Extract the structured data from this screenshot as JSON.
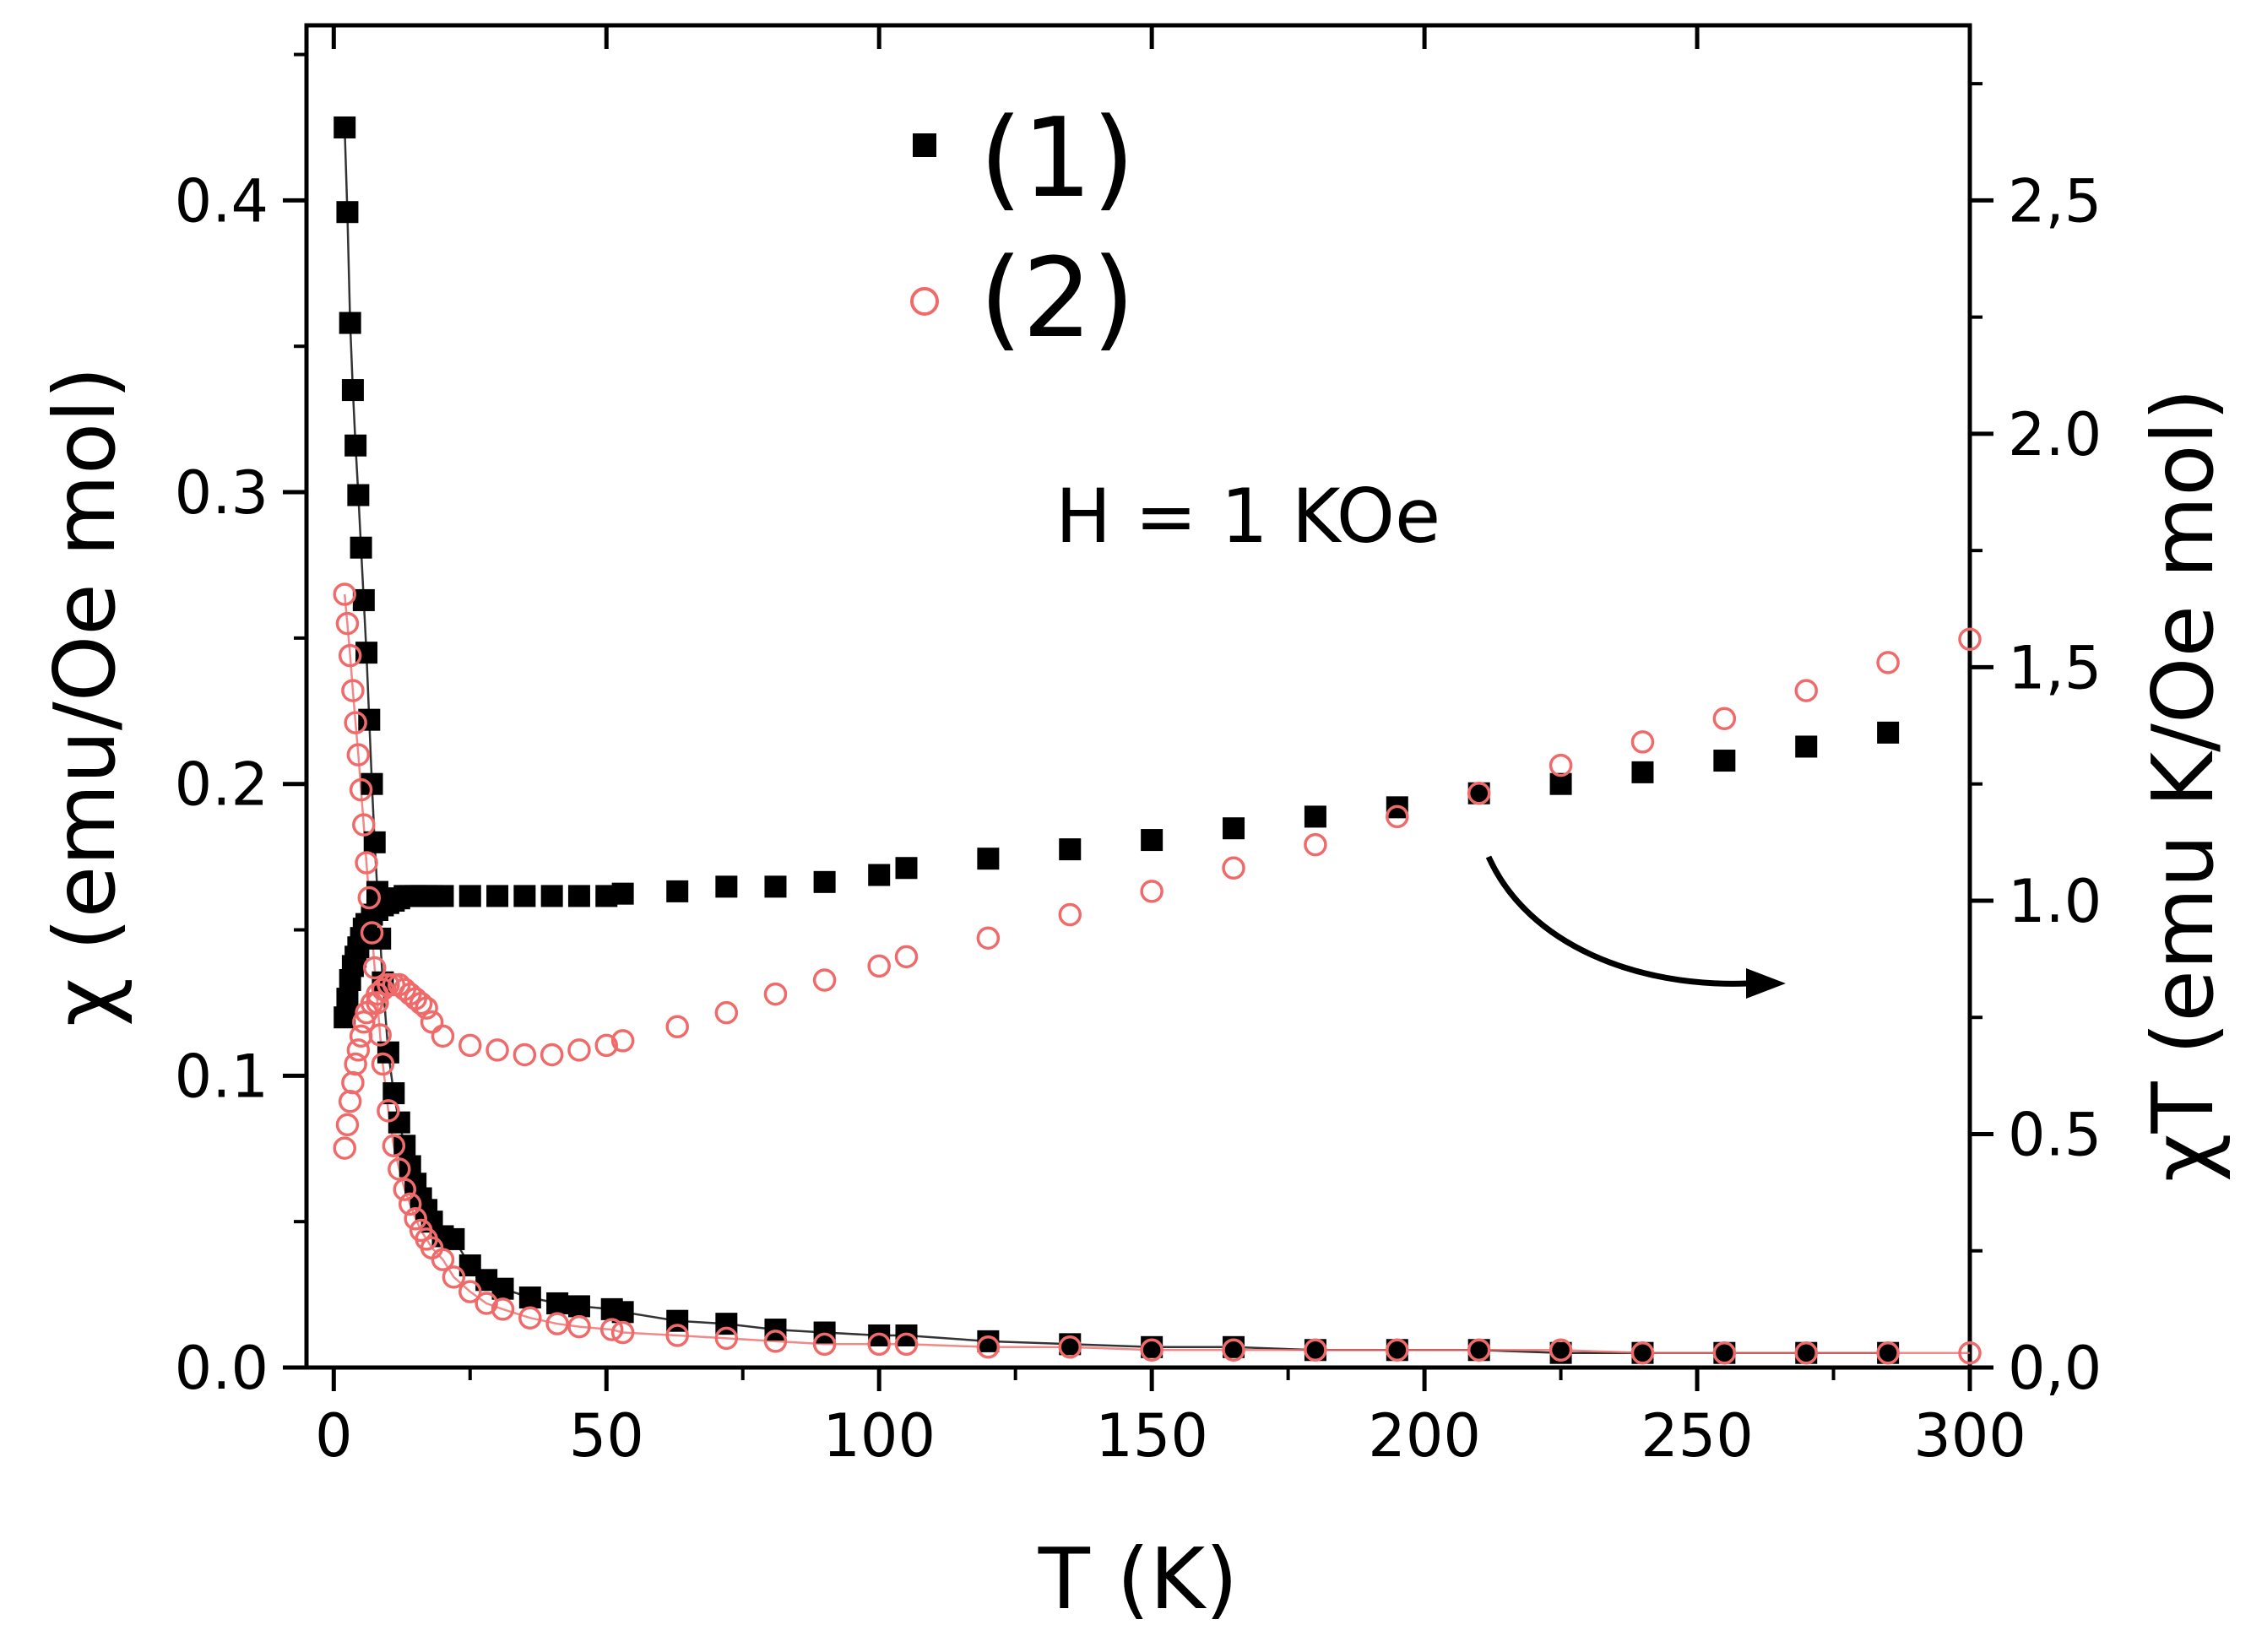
{
  "chart_data": {
    "type": "scatter",
    "title": "",
    "xlabel": "T (K)",
    "ylabel_left": "χ (emu/Oe mol)",
    "ylabel_right": "χT (emu K/Oe mol)",
    "xlim": [
      -5,
      300
    ],
    "ylim_left": [
      0,
      0.46
    ],
    "ylim_right": [
      0,
      2.875
    ],
    "x_ticks": [
      0,
      50,
      100,
      150,
      200,
      250,
      300
    ],
    "x_tick_labels": [
      "0",
      "50",
      "100",
      "150",
      "200",
      "250",
      "300"
    ],
    "y_left_ticks": [
      0.0,
      0.1,
      0.2,
      0.3,
      0.4
    ],
    "y_left_tick_labels": [
      "0.0",
      "0.1",
      "0.2",
      "0.3",
      "0.4"
    ],
    "y_right_ticks": [
      0.0,
      0.5,
      1.0,
      1.5,
      2.0,
      2.5
    ],
    "y_right_tick_labels": [
      "0,0",
      "0.5",
      "1.0",
      "1,5",
      "2.0",
      "2,5"
    ],
    "annotation": "H = 1 KOe",
    "legend": [
      {
        "label": "(1)",
        "marker": "filled-square",
        "color": "#000000"
      },
      {
        "label": "(2)",
        "marker": "open-circle",
        "color": "#f06a6a"
      }
    ],
    "series": [
      {
        "name": "(1) χ",
        "axis": "left",
        "color": "#000000",
        "marker": "filled-square",
        "x": [
          2,
          2.5,
          3,
          3.5,
          4,
          4.5,
          5,
          5.5,
          6,
          6.5,
          7,
          7.5,
          8,
          8.5,
          9,
          10,
          11,
          12,
          13,
          14,
          15,
          16,
          17,
          18,
          20,
          22,
          25,
          28,
          31,
          36,
          41,
          45,
          51,
          53,
          63,
          72,
          81,
          90,
          100,
          105,
          120,
          135,
          150,
          165,
          180,
          195,
          210,
          225,
          240,
          255,
          270,
          285
        ],
        "y": [
          0.425,
          0.396,
          0.358,
          0.335,
          0.316,
          0.299,
          0.281,
          0.263,
          0.245,
          0.222,
          0.2,
          0.18,
          0.163,
          0.147,
          0.132,
          0.108,
          0.094,
          0.084,
          0.076,
          0.069,
          0.063,
          0.058,
          0.054,
          0.05,
          0.045,
          0.044,
          0.035,
          0.03,
          0.027,
          0.024,
          0.022,
          0.021,
          0.02,
          0.019,
          0.016,
          0.015,
          0.013,
          0.012,
          0.011,
          0.011,
          0.009,
          0.008,
          0.007,
          0.007,
          0.006,
          0.006,
          0.006,
          0.005,
          0.005,
          0.005,
          0.005,
          0.005
        ]
      },
      {
        "name": "(1) χT",
        "axis": "right",
        "color": "#000000",
        "marker": "filled-square",
        "x": [
          2,
          2.5,
          3,
          3.5,
          4,
          4.5,
          5,
          5.5,
          6,
          7,
          8,
          9,
          10,
          11,
          12,
          13,
          14,
          15,
          16,
          17,
          18,
          20,
          25,
          30,
          35,
          40,
          45,
          50,
          53,
          63,
          72,
          81,
          90,
          100,
          105,
          120,
          135,
          150,
          165,
          180,
          195,
          210,
          225,
          240,
          255,
          270,
          285
        ],
        "y": [
          0.75,
          0.79,
          0.83,
          0.86,
          0.88,
          0.9,
          0.92,
          0.94,
          0.95,
          0.97,
          0.98,
          0.99,
          0.995,
          1.0,
          1.005,
          1.01,
          1.01,
          1.01,
          1.01,
          1.01,
          1.01,
          1.01,
          1.01,
          1.01,
          1.01,
          1.01,
          1.01,
          1.01,
          1.015,
          1.02,
          1.03,
          1.03,
          1.04,
          1.055,
          1.07,
          1.09,
          1.11,
          1.13,
          1.155,
          1.18,
          1.2,
          1.23,
          1.25,
          1.275,
          1.3,
          1.33,
          1.36
        ]
      },
      {
        "name": "(2) χ",
        "axis": "left",
        "color": "#f06a6a",
        "marker": "open-circle",
        "x": [
          2,
          2.5,
          3,
          3.5,
          4,
          4.5,
          5,
          5.5,
          6,
          6.5,
          7,
          7.5,
          8,
          8.5,
          9,
          10,
          11,
          12,
          13,
          14,
          15,
          16,
          17,
          18,
          20,
          22,
          25,
          28,
          31,
          36,
          41,
          45,
          51,
          53,
          63,
          72,
          81,
          90,
          100,
          105,
          120,
          135,
          150,
          165,
          180,
          195,
          210,
          225,
          240,
          255,
          270,
          285,
          300
        ],
        "y": [
          0.265,
          0.255,
          0.244,
          0.232,
          0.221,
          0.21,
          0.198,
          0.186,
          0.173,
          0.161,
          0.149,
          0.137,
          0.125,
          0.114,
          0.104,
          0.088,
          0.076,
          0.068,
          0.061,
          0.056,
          0.051,
          0.047,
          0.044,
          0.041,
          0.037,
          0.031,
          0.026,
          0.022,
          0.02,
          0.017,
          0.015,
          0.014,
          0.013,
          0.012,
          0.011,
          0.01,
          0.009,
          0.008,
          0.008,
          0.008,
          0.007,
          0.007,
          0.006,
          0.006,
          0.006,
          0.006,
          0.006,
          0.006,
          0.005,
          0.005,
          0.005,
          0.005,
          0.005
        ]
      },
      {
        "name": "(2) χT",
        "axis": "right",
        "color": "#f06a6a",
        "marker": "open-circle",
        "x": [
          2,
          2.5,
          3,
          3.5,
          4,
          4.5,
          5,
          5.5,
          6,
          7,
          8,
          9,
          10,
          11,
          12,
          13,
          14,
          15,
          16,
          17,
          18,
          20,
          25,
          30,
          35,
          40,
          45,
          50,
          53,
          63,
          72,
          81,
          90,
          100,
          105,
          120,
          135,
          150,
          165,
          180,
          195,
          210,
          225,
          240,
          255,
          270,
          285,
          300
        ],
        "y": [
          0.47,
          0.52,
          0.57,
          0.61,
          0.65,
          0.68,
          0.71,
          0.74,
          0.76,
          0.78,
          0.8,
          0.81,
          0.82,
          0.82,
          0.82,
          0.81,
          0.8,
          0.79,
          0.78,
          0.77,
          0.74,
          0.71,
          0.69,
          0.68,
          0.67,
          0.67,
          0.68,
          0.69,
          0.7,
          0.73,
          0.76,
          0.8,
          0.83,
          0.86,
          0.88,
          0.92,
          0.97,
          1.02,
          1.07,
          1.12,
          1.18,
          1.23,
          1.29,
          1.34,
          1.39,
          1.45,
          1.51,
          1.56
        ]
      }
    ]
  }
}
